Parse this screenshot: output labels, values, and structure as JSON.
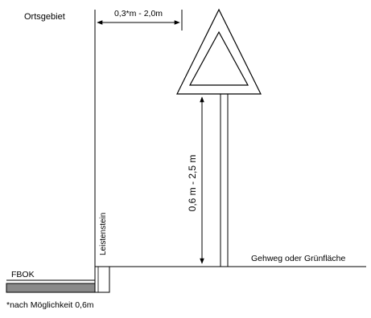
{
  "labels": {
    "area": "Ortsgebiet",
    "horizontal_distance": "0,3*m - 2,0m",
    "height": "0,6 m - 2,5 m",
    "curb": "Leistenstein",
    "sidewalk": "Gehweg oder Grünfläche",
    "road_level": "FBOK",
    "footnote": "*nach Möglichkeit 0,6m"
  },
  "colors": {
    "line": "#000000",
    "road_fill": "#8a8a8a"
  },
  "icons": {
    "sign": "warning-triangle-sign-icon"
  }
}
